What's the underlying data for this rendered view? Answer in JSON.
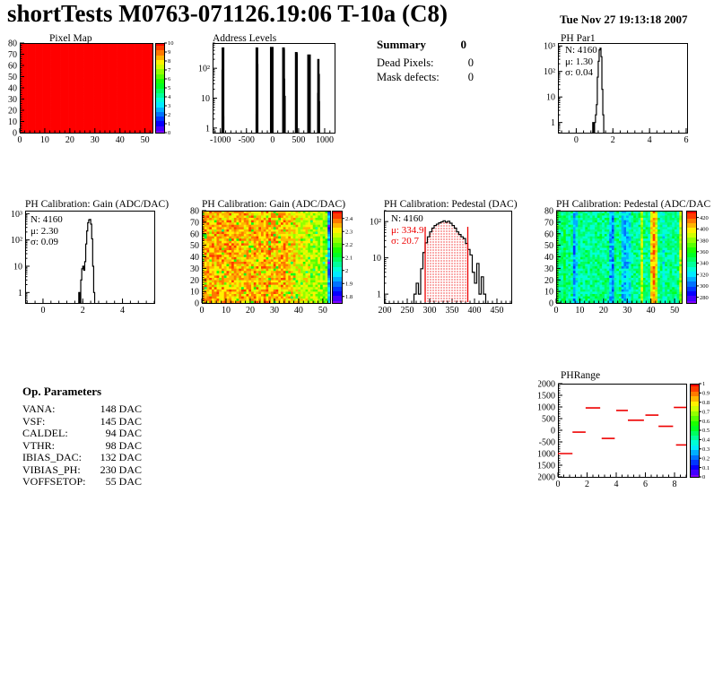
{
  "header": {
    "title": "shortTests M0763-071126.19:06 T-10a (C8)",
    "timestamp": "Tue Nov 27 19:13:18 2007"
  },
  "summary": {
    "title": "Summary",
    "total": "0",
    "rows": [
      {
        "label": "Dead Pixels:",
        "value": "0"
      },
      {
        "label": "Mask defects:",
        "value": "0"
      }
    ]
  },
  "op_parameters": {
    "title": "Op. Parameters",
    "rows": [
      {
        "label": "VANA:",
        "value": "148 DAC"
      },
      {
        "label": "VSF:",
        "value": "145 DAC"
      },
      {
        "label": "CALDEL:",
        "value": "94 DAC"
      },
      {
        "label": "VTHR:",
        "value": "98 DAC"
      },
      {
        "label": "IBIAS_DAC:",
        "value": "132 DAC"
      },
      {
        "label": "VIBIAS_PH:",
        "value": "230 DAC"
      },
      {
        "label": "VOFFSETOP:",
        "value": "55 DAC"
      }
    ]
  },
  "colors": {
    "accent_red": "#ee0000",
    "hist_line": "#000000",
    "frame": "#000000"
  },
  "chart_data": [
    {
      "id": "pixel_map",
      "type": "heatmap",
      "title": "Pixel Map",
      "x_range": [
        0,
        53
      ],
      "y_range": [
        0,
        80
      ],
      "x_ticks": [
        0,
        10,
        20,
        30,
        40,
        50
      ],
      "y_ticks": [
        0,
        10,
        20,
        30,
        40,
        50,
        60,
        70,
        80
      ],
      "nx": 52,
      "ny": 40,
      "seed": 1,
      "z_range": [
        0,
        10
      ],
      "base": 10,
      "noise": 0,
      "note": "all pixels at maximum value 10 (uniform red)",
      "colorbar": {
        "range": [
          0,
          10
        ],
        "ticks": [
          [
            "10",
            10
          ],
          [
            "9",
            9
          ],
          [
            "8",
            8
          ],
          [
            "7",
            7
          ],
          [
            "6",
            6
          ],
          [
            "5",
            5
          ],
          [
            "4",
            4
          ],
          [
            "3",
            3
          ],
          [
            "2",
            2
          ],
          [
            "1",
            1
          ],
          [
            "0",
            0
          ]
        ]
      }
    },
    {
      "id": "address_levels",
      "type": "spikes",
      "title": "Address Levels",
      "x_range": [
        -1150,
        1190
      ],
      "x_ticks": [
        -1000,
        -500,
        0,
        500,
        1000
      ],
      "y_scale": "log",
      "y_range": [
        0.7,
        700
      ],
      "y_ticks": [
        [
          "10²",
          100
        ],
        [
          "10",
          10
        ],
        [
          "1",
          1
        ]
      ],
      "spikes": [
        [
          -962,
          90,
          2
        ],
        [
          -950,
          500,
          3
        ],
        [
          -938,
          2.5,
          1.5
        ],
        [
          -312,
          3,
          1.5
        ],
        [
          -300,
          500,
          3
        ],
        [
          -288,
          140,
          2
        ],
        [
          -15,
          520,
          4
        ],
        [
          210,
          500,
          3
        ],
        [
          221,
          430,
          2
        ],
        [
          231,
          45,
          1.5
        ],
        [
          240,
          12,
          1.5
        ],
        [
          455,
          350,
          3
        ],
        [
          467,
          320,
          2
        ],
        [
          700,
          290,
          4
        ],
        [
          868,
          15,
          1.5
        ],
        [
          879,
          205,
          2.5
        ],
        [
          891,
          65,
          2
        ],
        [
          899,
          8,
          1.5
        ]
      ]
    },
    {
      "id": "ph_par1",
      "type": "hist",
      "title": "PH Par1",
      "stats": [
        {
          "text": "N: 4160",
          "color": "#000000"
        },
        {
          "text": "μ: 1.30",
          "color": "#000000"
        },
        {
          "text": "σ: 0.04",
          "color": "#000000"
        }
      ],
      "x_range": [
        -1,
        6.05
      ],
      "x_ticks": [
        0,
        2,
        4,
        6
      ],
      "y_scale": "log",
      "y_range": [
        0.4,
        1300
      ],
      "y_ticks": [
        [
          "10³",
          1000
        ],
        [
          "10²",
          100
        ],
        [
          "10",
          10
        ],
        [
          "1",
          1
        ]
      ],
      "bin_width": 0.05,
      "bins": [
        [
          0.9,
          1
        ],
        [
          1.0,
          1
        ],
        [
          1.05,
          2
        ],
        [
          1.1,
          5
        ],
        [
          1.15,
          60
        ],
        [
          1.2,
          250
        ],
        [
          1.25,
          700
        ],
        [
          1.3,
          820
        ],
        [
          1.35,
          380
        ],
        [
          1.4,
          20
        ],
        [
          1.45,
          2
        ]
      ]
    },
    {
      "id": "gain_hist",
      "type": "hist",
      "title": "PH Calibration: Gain (ADC/DAC)",
      "stats": [
        {
          "text": "N: 4160",
          "color": "#000000"
        },
        {
          "text": "μ: 2.30",
          "color": "#000000"
        },
        {
          "text": "σ: 0.09",
          "color": "#000000"
        }
      ],
      "x_range": [
        -0.9,
        5.6
      ],
      "x_ticks": [
        0,
        2,
        4
      ],
      "y_scale": "log",
      "y_range": [
        0.4,
        1300
      ],
      "y_ticks": [
        [
          "10³",
          1000
        ],
        [
          "10²",
          100
        ],
        [
          "10",
          10
        ],
        [
          "1",
          1
        ]
      ],
      "bin_width": 0.05,
      "bins": [
        [
          1.8,
          1
        ],
        [
          1.9,
          3
        ],
        [
          1.95,
          8
        ],
        [
          2.0,
          10
        ],
        [
          2.05,
          7
        ],
        [
          2.1,
          15
        ],
        [
          2.15,
          70
        ],
        [
          2.2,
          220
        ],
        [
          2.25,
          450
        ],
        [
          2.3,
          580
        ],
        [
          2.35,
          600
        ],
        [
          2.4,
          400
        ],
        [
          2.45,
          110
        ],
        [
          2.5,
          10
        ],
        [
          2.55,
          1
        ]
      ]
    },
    {
      "id": "gain_map",
      "type": "heatmap",
      "title": "PH Calibration: Gain (ADC/DAC)",
      "x_range": [
        0,
        53
      ],
      "y_range": [
        0,
        80
      ],
      "x_ticks": [
        0,
        10,
        20,
        30,
        40,
        50
      ],
      "y_ticks": [
        0,
        10,
        20,
        30,
        40,
        50,
        60,
        70,
        80
      ],
      "nx": 52,
      "ny": 40,
      "seed": 7,
      "z_range": [
        1.75,
        2.46
      ],
      "base": 2.35,
      "noise": 0.07,
      "speckle": {
        "prob": 0.05,
        "delta": -0.18
      },
      "profile": [
        [
          0,
          0
        ],
        [
          33,
          0
        ],
        [
          36,
          -0.03
        ],
        [
          42,
          -0.08
        ],
        [
          50,
          -0.12
        ],
        [
          51,
          -0.42
        ]
      ],
      "note": "gain ~2.35 ADC/DAC over most of chip, dropping toward ~2.23 at high column, last double column ~1.93",
      "colorbar": {
        "range": [
          1.75,
          2.46
        ],
        "ticks": [
          [
            "2.4",
            2.4
          ],
          [
            "2.3",
            2.3
          ],
          [
            "2.2",
            2.2
          ],
          [
            "2.1",
            2.1
          ],
          [
            "2",
            2.0
          ],
          [
            "1.9",
            1.9
          ],
          [
            "1.8",
            1.8
          ]
        ]
      }
    },
    {
      "id": "pedestal_hist",
      "type": "hist",
      "title": "PH Calibration: Pedestal (DAC)",
      "stats": [
        {
          "text": "N: 4160",
          "color": "#000000"
        },
        {
          "text": "μ: 334.9",
          "color": "#ee0000"
        },
        {
          "text": "σ: 20.7",
          "color": "#ee0000"
        }
      ],
      "x_range": [
        198,
        482
      ],
      "x_ticks": [
        200,
        250,
        300,
        350,
        400,
        450
      ],
      "y_scale": "log",
      "y_range": [
        0.57,
        200
      ],
      "y_ticks": [
        [
          "10²",
          100
        ],
        [
          "10",
          10
        ],
        [
          "1",
          1
        ]
      ],
      "bin_width": 5,
      "bins": [
        [
          265,
          1
        ],
        [
          270,
          2
        ],
        [
          275,
          1
        ],
        [
          280,
          5
        ],
        [
          285,
          14
        ],
        [
          290,
          26
        ],
        [
          295,
          38
        ],
        [
          300,
          52
        ],
        [
          305,
          66
        ],
        [
          310,
          78
        ],
        [
          315,
          85
        ],
        [
          320,
          92
        ],
        [
          325,
          98
        ],
        [
          330,
          105
        ],
        [
          335,
          96
        ],
        [
          340,
          102
        ],
        [
          345,
          90
        ],
        [
          350,
          78
        ],
        [
          355,
          66
        ],
        [
          360,
          52
        ],
        [
          365,
          44
        ],
        [
          370,
          38
        ],
        [
          375,
          34
        ],
        [
          380,
          25
        ],
        [
          385,
          17
        ],
        [
          390,
          12
        ],
        [
          395,
          4
        ],
        [
          400,
          2
        ],
        [
          405,
          7
        ],
        [
          410,
          1
        ],
        [
          415,
          3
        ],
        [
          420,
          1
        ]
      ],
      "red_lines": [
        290,
        385
      ],
      "fill_between": [
        290,
        385
      ]
    },
    {
      "id": "pedestal_map",
      "type": "heatmap",
      "title": "PH Calibration: Pedestal (ADC/DAC",
      "x_range": [
        0,
        53
      ],
      "y_range": [
        0,
        80
      ],
      "x_ticks": [
        0,
        10,
        20,
        30,
        40,
        50
      ],
      "y_ticks": [
        0,
        10,
        20,
        30,
        40,
        50,
        60,
        70,
        80
      ],
      "nx": 52,
      "ny": 40,
      "seed": 11,
      "z_range": [
        270,
        432
      ],
      "base": 340,
      "noise": 14,
      "col_offsets": {
        "0": 20,
        "3": 12,
        "7": -32,
        "8": -14,
        "22": -28,
        "23": -33,
        "27": -22,
        "28": -26,
        "29": -22,
        "30": -18,
        "35": 45,
        "39": 60,
        "40": 70,
        "41": 52,
        "44": -12,
        "51": 45
      },
      "note": "pedestal ~340 DAC (green/cyan) with low (blue) columns near 7, 22-23, 27-30 and high (orange) columns near 39-41",
      "colorbar": {
        "range": [
          270,
          432
        ],
        "ticks": [
          [
            "420",
            420
          ],
          [
            "400",
            400
          ],
          [
            "380",
            380
          ],
          [
            "360",
            360
          ],
          [
            "340",
            340
          ],
          [
            "320",
            320
          ],
          [
            "300",
            300
          ],
          [
            "280",
            280
          ]
        ]
      }
    },
    {
      "id": "ph_range",
      "type": "segments",
      "title": "PHRange",
      "x_range": [
        0,
        8.8
      ],
      "x_ticks": [
        0,
        2,
        4,
        6,
        8
      ],
      "y_range": [
        -2000,
        2000
      ],
      "y_ticks": [
        [
          "2000",
          2000
        ],
        [
          "1500",
          1500
        ],
        [
          "1000",
          1000
        ],
        [
          "500",
          500
        ],
        [
          "0",
          0
        ],
        [
          "-500",
          -500
        ],
        [
          "1000",
          -1000
        ],
        [
          "1500",
          -1500
        ],
        [
          "2000",
          -2000
        ]
      ],
      "segment_color": "#ee0000",
      "segments": [
        [
          0,
          1,
          -1000
        ],
        [
          1,
          1.9,
          -80
        ],
        [
          1.9,
          2.9,
          960
        ],
        [
          3,
          3.9,
          -350
        ],
        [
          4,
          4.8,
          850
        ],
        [
          4.8,
          5.9,
          430
        ],
        [
          6,
          6.9,
          650
        ],
        [
          6.9,
          7.9,
          170
        ],
        [
          7.95,
          8.8,
          980
        ],
        [
          8.1,
          8.8,
          -630
        ]
      ],
      "colorbar": {
        "range": [
          0,
          1
        ],
        "ticks": [
          [
            "1",
            1
          ],
          [
            "0.9",
            0.9
          ],
          [
            "0.8",
            0.8
          ],
          [
            "0.7",
            0.7
          ],
          [
            "0.6",
            0.6
          ],
          [
            "0.5",
            0.5
          ],
          [
            "0.4",
            0.4
          ],
          [
            "0.3",
            0.3
          ],
          [
            "0.2",
            0.2
          ],
          [
            "0.1",
            0.1
          ],
          [
            "0",
            0
          ]
        ]
      }
    }
  ]
}
